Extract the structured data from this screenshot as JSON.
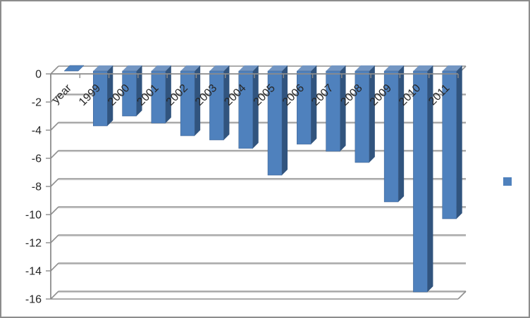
{
  "frame": {
    "background": "#FFFFFF",
    "border_color": "#8C8C8C",
    "title": ""
  },
  "chart_data": {
    "type": "bar",
    "variant": "3d-clustered-column",
    "title": "",
    "xlabel": "",
    "ylabel": "",
    "categories": [
      "year",
      "1999",
      "2000",
      "2001",
      "2002",
      "2003",
      "2004",
      "2005",
      "2006",
      "2007",
      "2008",
      "2009",
      "2010",
      "2011"
    ],
    "series": [
      {
        "name": "",
        "color": "#4F81BD",
        "values": [
          0,
          -3.9,
          -3.2,
          -3.7,
          -4.6,
          -4.9,
          -5.5,
          -7.4,
          -5.2,
          -5.7,
          -6.5,
          -9.3,
          -15.7,
          -10.5
        ]
      }
    ],
    "ylim": [
      -16,
      0
    ],
    "y_tick_step": 2,
    "y_tick_labels": [
      "0",
      "-2",
      "-4",
      "-6",
      "-8",
      "-10",
      "-12",
      "-14",
      "-16"
    ],
    "grid": true,
    "category_label_rotation_deg": -45,
    "legend": {
      "position": "right",
      "entries": [
        {
          "label": "",
          "color": "#4F81BD"
        }
      ]
    },
    "colors": {
      "bar_front": "#4F81BD",
      "bar_side": "#31547E",
      "bar_top": "#7396C3",
      "bar_outline": "#3A5E8C",
      "gridline": "#8F8F8F",
      "gridline_light": "#C9C9C9",
      "axis": "#8C8C8C",
      "text": "#262626"
    }
  }
}
